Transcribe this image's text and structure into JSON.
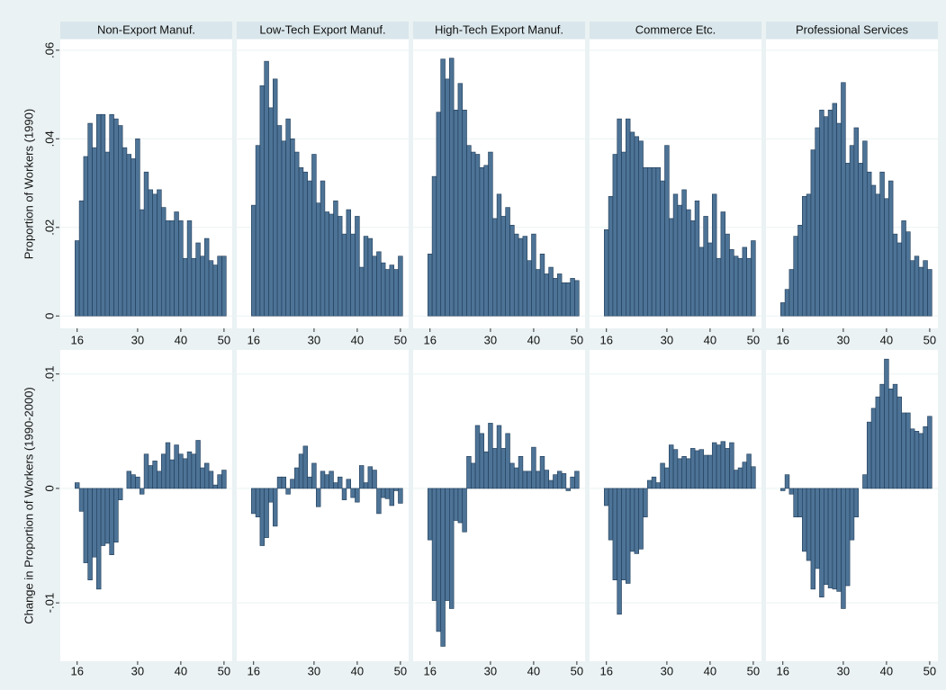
{
  "chart_data": {
    "type": "bar",
    "color": "#4d7396",
    "grid": true,
    "x": [
      16,
      17,
      18,
      19,
      20,
      21,
      22,
      23,
      24,
      25,
      26,
      27,
      28,
      29,
      30,
      31,
      32,
      33,
      34,
      35,
      36,
      37,
      38,
      39,
      40,
      41,
      42,
      43,
      44,
      45,
      46,
      47,
      48,
      49,
      50
    ],
    "xlim": [
      12.1,
      51.9
    ],
    "xticks": [
      16,
      30,
      40,
      50
    ],
    "panels": [
      "Non-Export Manuf.",
      "Low-Tech Export Manuf.",
      "High-Tech Export Manuf.",
      "Commerce Etc.",
      "Professional Services"
    ],
    "rows": [
      {
        "ylabel": "Proportion of Workers (1990)",
        "ylim": [
          -0.0028,
          0.0624
        ],
        "yticks": [
          0,
          {
            "value": 0.02,
            "label": ".02"
          },
          {
            "value": 0.04,
            "label": ".04"
          },
          {
            "value": 0.06,
            "label": ".06"
          }
        ],
        "values": [
          [
            0.017,
            0.026,
            0.036,
            0.0435,
            0.038,
            0.0455,
            0.0455,
            0.037,
            0.0455,
            0.0445,
            0.043,
            0.038,
            0.0365,
            0.0355,
            0.04,
            0.024,
            0.0325,
            0.0285,
            0.0275,
            0.0285,
            0.0245,
            0.0215,
            0.0215,
            0.0235,
            0.0215,
            0.013,
            0.0215,
            0.013,
            0.0165,
            0.0135,
            0.0175,
            0.0125,
            0.0115,
            0.0135,
            0.0135
          ],
          [
            0.025,
            0.0385,
            0.052,
            0.0575,
            0.047,
            0.0535,
            0.043,
            0.0395,
            0.0445,
            0.04,
            0.037,
            0.0335,
            0.0325,
            0.0305,
            0.0365,
            0.0255,
            0.0305,
            0.0235,
            0.023,
            0.026,
            0.0225,
            0.0185,
            0.024,
            0.0185,
            0.0225,
            0.011,
            0.018,
            0.0175,
            0.0135,
            0.0145,
            0.012,
            0.0105,
            0.0115,
            0.0105,
            0.0135
          ],
          [
            0.014,
            0.0315,
            0.046,
            0.058,
            0.0535,
            0.0582,
            0.0465,
            0.0525,
            0.0465,
            0.0385,
            0.037,
            0.0365,
            0.0335,
            0.034,
            0.037,
            0.022,
            0.0275,
            0.0225,
            0.0245,
            0.0205,
            0.0185,
            0.0175,
            0.018,
            0.0125,
            0.0185,
            0.0105,
            0.014,
            0.0095,
            0.011,
            0.0085,
            0.0095,
            0.0075,
            0.0075,
            0.0085,
            0.008
          ],
          [
            0.0195,
            0.027,
            0.0365,
            0.0445,
            0.037,
            0.0445,
            0.0415,
            0.0405,
            0.0395,
            0.0335,
            0.0335,
            0.0335,
            0.0335,
            0.0305,
            0.0385,
            0.022,
            0.0275,
            0.025,
            0.0285,
            0.024,
            0.0215,
            0.026,
            0.0155,
            0.0225,
            0.0165,
            0.0275,
            0.013,
            0.0235,
            0.0185,
            0.015,
            0.0135,
            0.013,
            0.0155,
            0.013,
            0.017
          ],
          [
            0.003,
            0.006,
            0.0105,
            0.018,
            0.0205,
            0.027,
            0.0275,
            0.0375,
            0.0425,
            0.0465,
            0.045,
            0.0465,
            0.048,
            0.0435,
            0.0527,
            0.0345,
            0.0385,
            0.0425,
            0.0345,
            0.0395,
            0.0325,
            0.0295,
            0.0275,
            0.0325,
            0.0265,
            0.0305,
            0.0185,
            0.0165,
            0.0215,
            0.019,
            0.0125,
            0.0135,
            0.011,
            0.0125,
            0.0105
          ]
        ]
      },
      {
        "ylabel": "Change in Proportion of Workers (1990-2000)",
        "ylim": [
          -0.0151,
          0.0121
        ],
        "yticks": [
          {
            "value": -0.01,
            "label": "-.01"
          },
          0,
          {
            "value": 0.01,
            "label": ".01"
          }
        ],
        "values": [
          [
            0.0005,
            -0.002,
            -0.0065,
            -0.008,
            -0.006,
            -0.0088,
            -0.005,
            -0.0048,
            -0.0058,
            -0.0047,
            -0.001,
            0,
            0.0015,
            0.0012,
            0.001,
            -0.0005,
            0.003,
            0.002,
            0.0024,
            0.0015,
            0.003,
            0.004,
            0.0025,
            0.0038,
            0.003,
            0.0026,
            0.0032,
            0.003,
            0.0042,
            0.0018,
            0.0022,
            0.0015,
            0.0003,
            0.0012,
            0.0016
          ],
          [
            -0.0022,
            -0.0025,
            -0.005,
            -0.0043,
            -0.0012,
            -0.0033,
            0.001,
            0.001,
            -0.0005,
            0.0008,
            0.0018,
            0.003,
            0.0037,
            0.001,
            0.0022,
            -0.0016,
            0.0015,
            0.0012,
            0.0015,
            0.0005,
            0.001,
            -0.001,
            0.0008,
            -0.0008,
            -0.0012,
            0.002,
            0.0005,
            0.0019,
            0.0016,
            -0.0022,
            -0.0008,
            -0.0009,
            -0.0015,
            -0.0002,
            -0.0013
          ],
          [
            -0.0045,
            -0.0098,
            -0.0125,
            -0.0138,
            -0.0098,
            -0.0105,
            -0.0028,
            -0.003,
            -0.0038,
            0.0028,
            0.0022,
            0.0055,
            0.0048,
            0.0032,
            0.0057,
            0.0035,
            0.0055,
            0.0035,
            0.0048,
            0.0022,
            0.0018,
            0.0028,
            0.0015,
            0.0015,
            0.0036,
            0.0015,
            0.0028,
            0.0016,
            0.0007,
            0.0012,
            0.0015,
            0.0013,
            -0.0002,
            0.001,
            0.0015
          ],
          [
            -0.0015,
            -0.0045,
            -0.008,
            -0.011,
            -0.008,
            -0.0083,
            -0.0055,
            -0.0057,
            -0.0053,
            -0.0025,
            0.0007,
            0.001,
            0.0005,
            0.0022,
            0.0018,
            0.0038,
            0.0034,
            0.0026,
            0.0028,
            0.0026,
            0.0035,
            0.0033,
            0.0034,
            0.0029,
            0.0029,
            0.004,
            0.0038,
            0.0041,
            0.0035,
            0.004,
            0.0016,
            0.0018,
            0.0023,
            0.003,
            0.0019
          ],
          [
            -0.0002,
            0.0012,
            -0.0005,
            -0.0025,
            -0.0025,
            -0.0055,
            -0.0063,
            -0.0088,
            -0.007,
            -0.0095,
            -0.0084,
            -0.0087,
            -0.0088,
            -0.009,
            -0.0105,
            -0.0085,
            -0.0045,
            -0.0025,
            0,
            0.0012,
            0.0058,
            0.007,
            0.008,
            0.0091,
            0.0113,
            0.0087,
            0.0091,
            0.008,
            0.0066,
            0.0066,
            0.0052,
            0.005,
            0.0048,
            0.0054,
            0.0063
          ]
        ]
      }
    ]
  }
}
